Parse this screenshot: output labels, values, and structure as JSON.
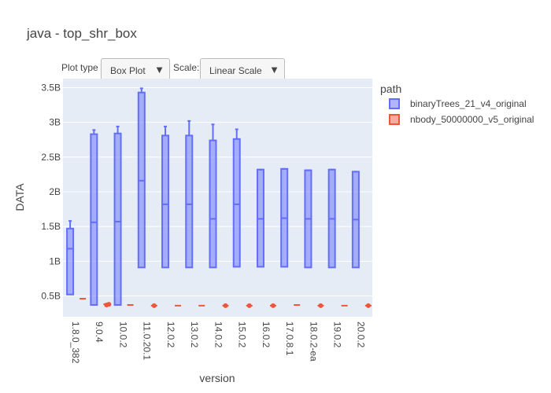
{
  "controls": {
    "plot_type_label": "Plot type",
    "plot_type_value": "Box Plot",
    "scale_label": "Scale:",
    "scale_value": "Linear Scale",
    "caret_icon": "▼"
  },
  "chart_data": {
    "type": "box",
    "title": "java - top_shr_box",
    "xlabel": "version",
    "ylabel": "DATA",
    "ylim": [
      0.2,
      3.63
    ],
    "yticks": [
      0.5,
      1,
      1.5,
      2,
      2.5,
      3,
      3.5
    ],
    "ytick_labels": [
      "0.5B",
      "1B",
      "1.5B",
      "2B",
      "2.5B",
      "3B",
      "3.5B"
    ],
    "categories": [
      "1.8.0_382",
      "9.0.4",
      "10.0.2",
      "11.0.20.1",
      "12.0.2",
      "13.0.2",
      "14.0.2",
      "15.0.2",
      "16.0.2",
      "17.0.8.1",
      "18.0.2-ea",
      "19.0.2",
      "20.0.2"
    ],
    "legend_title": "path",
    "legend_position": "right",
    "grid": true,
    "series": [
      {
        "name": "binaryTrees_21_v4_original",
        "color": "#636efa",
        "unit": "billions",
        "boxes": [
          {
            "min": 0.52,
            "q1": 0.52,
            "median": 1.18,
            "q3": 1.47,
            "max": 1.58
          },
          {
            "min": 0.37,
            "q1": 0.37,
            "median": 1.56,
            "q3": 2.83,
            "max": 2.89
          },
          {
            "min": 0.37,
            "q1": 0.37,
            "median": 1.57,
            "q3": 2.84,
            "max": 2.94
          },
          {
            "min": 0.91,
            "q1": 0.91,
            "median": 2.16,
            "q3": 3.43,
            "max": 3.49
          },
          {
            "min": 0.91,
            "q1": 0.91,
            "median": 1.82,
            "q3": 2.81,
            "max": 2.94
          },
          {
            "min": 0.91,
            "q1": 0.91,
            "median": 1.82,
            "q3": 2.81,
            "max": 3.02
          },
          {
            "min": 0.91,
            "q1": 0.91,
            "median": 1.61,
            "q3": 2.74,
            "max": 2.97
          },
          {
            "min": 0.92,
            "q1": 0.92,
            "median": 1.82,
            "q3": 2.76,
            "max": 2.9
          },
          {
            "min": 0.92,
            "q1": 0.92,
            "median": 1.61,
            "q3": 2.32,
            "max": 2.32
          },
          {
            "min": 0.92,
            "q1": 0.92,
            "median": 1.62,
            "q3": 2.33,
            "max": 2.33
          },
          {
            "min": 0.91,
            "q1": 0.91,
            "median": 1.61,
            "q3": 2.31,
            "max": 2.31
          },
          {
            "min": 0.91,
            "q1": 0.91,
            "median": 1.61,
            "q3": 2.32,
            "max": 2.32
          },
          {
            "min": 0.91,
            "q1": 0.91,
            "median": 1.6,
            "q3": 2.29,
            "max": 2.29
          }
        ]
      },
      {
        "name": "nbody_50000000_v5_original",
        "color": "#ef553b",
        "unit": "billions",
        "boxes": [
          {
            "median": 0.46,
            "outliers": []
          },
          {
            "median": 0.38,
            "outliers": [
              0.37,
              0.38
            ]
          },
          {
            "median": 0.37,
            "outliers": []
          },
          {
            "median": 0.36,
            "outliers": [
              0.36
            ]
          },
          {
            "median": 0.36,
            "outliers": []
          },
          {
            "median": 0.36,
            "outliers": []
          },
          {
            "median": 0.36,
            "outliers": [
              0.36
            ]
          },
          {
            "median": 0.36,
            "outliers": [
              0.36
            ]
          },
          {
            "median": 0.36,
            "outliers": [
              0.36
            ]
          },
          {
            "median": 0.37,
            "outliers": []
          },
          {
            "median": 0.36,
            "outliers": [
              0.36
            ]
          },
          {
            "median": 0.36,
            "outliers": []
          },
          {
            "median": 0.36,
            "outliers": [
              0.36
            ]
          }
        ]
      }
    ]
  }
}
